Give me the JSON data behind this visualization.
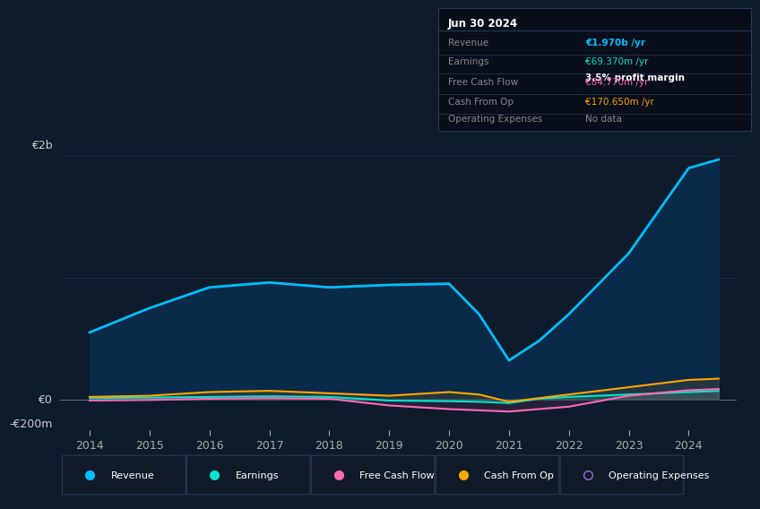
{
  "background_color": "#0d1b2a",
  "plot_bg_color": "#0d1b2a",
  "years": [
    2014,
    2015,
    2016,
    2017,
    2018,
    2019,
    2020,
    2020.5,
    2021,
    2021.5,
    2022,
    2023,
    2024,
    2024.5
  ],
  "revenue": [
    550,
    750,
    920,
    960,
    920,
    940,
    950,
    700,
    320,
    480,
    700,
    1200,
    1900,
    1970
  ],
  "earnings": [
    10,
    15,
    20,
    25,
    20,
    -10,
    -15,
    -20,
    -30,
    5,
    20,
    40,
    60,
    69
  ],
  "free_cash_flow": [
    -10,
    -5,
    5,
    10,
    5,
    -50,
    -80,
    -90,
    -100,
    -80,
    -60,
    30,
    75,
    85
  ],
  "cash_from_op": [
    20,
    30,
    60,
    70,
    50,
    30,
    60,
    40,
    -20,
    10,
    40,
    100,
    160,
    170
  ],
  "revenue_color": "#00bfff",
  "earnings_color": "#00e5cc",
  "free_cash_flow_color": "#ff69b4",
  "cash_from_op_color": "#ffa500",
  "operating_expenses_color": "#9370db",
  "revenue_fill_color": "#0a2a4a",
  "ylim_min": -250,
  "ylim_max": 2100,
  "ylabel_top": "€2b",
  "ylabel_zero": "€0",
  "ylabel_bottom": "-€200m",
  "xticks": [
    2014,
    2015,
    2016,
    2017,
    2018,
    2019,
    2020,
    2021,
    2022,
    2023,
    2024
  ],
  "info_box": {
    "title": "Jun 30 2024",
    "rows": [
      {
        "label": "Revenue",
        "value": "€1.970b /yr",
        "value_color": "#00bfff"
      },
      {
        "label": "Earnings",
        "value": "€69.370m /yr",
        "value_color": "#00e5cc",
        "extra": "3.5% profit margin"
      },
      {
        "label": "Free Cash Flow",
        "value": "€84.770m /yr",
        "value_color": "#ff69b4"
      },
      {
        "label": "Cash From Op",
        "value": "€170.650m /yr",
        "value_color": "#ffa500"
      },
      {
        "label": "Operating Expenses",
        "value": "No data",
        "value_color": "#888888"
      }
    ]
  },
  "legend_items": [
    {
      "label": "Revenue",
      "color": "#00bfff",
      "filled": true
    },
    {
      "label": "Earnings",
      "color": "#00e5cc",
      "filled": true
    },
    {
      "label": "Free Cash Flow",
      "color": "#ff69b4",
      "filled": true
    },
    {
      "label": "Cash From Op",
      "color": "#ffa500",
      "filled": true
    },
    {
      "label": "Operating Expenses",
      "color": "#9370db",
      "filled": false
    }
  ]
}
